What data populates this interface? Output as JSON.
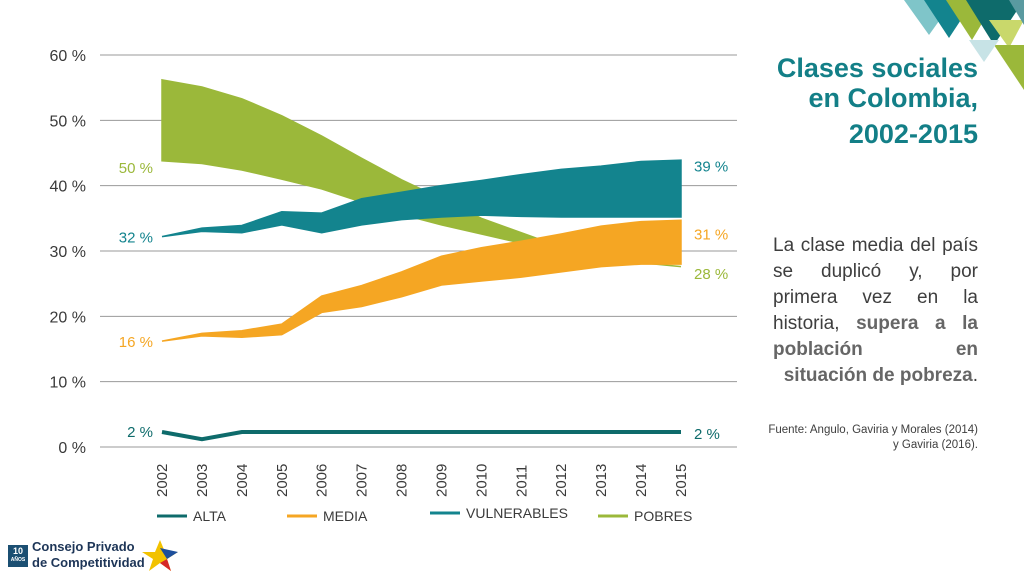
{
  "title": {
    "line1": "Clases sociales",
    "line2": "en Colombia,",
    "line3": "2002-2015"
  },
  "body": {
    "plain": "La clase media del país se duplicó y, por primera vez en la historia, ",
    "highlight": "supera a la población en situación de pobreza",
    "end": "."
  },
  "source": "Fuente: Angulo, Gaviria y Morales (2014) y Gaviria (2016).",
  "org": {
    "badge_num": "10",
    "badge_sub": "AÑOS",
    "name_line1": "Consejo Privado",
    "name_line2": "de Competitividad"
  },
  "colors": {
    "alta": "#0e6b6b",
    "media": "#f5a623",
    "vulnerables": "#13848e",
    "pobres": "#9bb83a",
    "title": "#137f87"
  },
  "chart_data": {
    "type": "area",
    "x": [
      "2002",
      "2003",
      "2004",
      "2005",
      "2006",
      "2007",
      "2008",
      "2009",
      "2010",
      "2011",
      "2012",
      "2013",
      "2014",
      "2015"
    ],
    "ylim": [
      0,
      60
    ],
    "yticks": [
      "0 %",
      "10 %",
      "20 %",
      "30 %",
      "40 %",
      "50 %",
      "60 %"
    ],
    "grid": true,
    "legend_position": "bottom",
    "series": [
      {
        "name": "ALTA",
        "type": "line",
        "values": [
          2.3,
          1.2,
          2.3,
          2.3,
          2.3,
          2.3,
          2.3,
          2.3,
          2.3,
          2.3,
          2.3,
          2.3,
          2.3,
          2.3
        ],
        "start_label": "2 %",
        "end_label": "2 %"
      },
      {
        "name": "MEDIA",
        "type": "band",
        "lower": [
          16.2,
          17.0,
          16.8,
          17.2,
          20.6,
          21.5,
          23.0,
          24.8,
          25.4,
          26.0,
          26.8,
          27.6,
          28.0,
          28.0
        ],
        "upper": [
          16.2,
          17.4,
          17.8,
          18.8,
          23.1,
          24.7,
          26.8,
          29.2,
          30.5,
          31.5,
          32.6,
          33.8,
          34.5,
          34.7
        ],
        "start_label": "16 %",
        "end_label": "31 %"
      },
      {
        "name": "VULNERABLES",
        "type": "band",
        "lower": [
          32.2,
          33.0,
          32.8,
          34.0,
          32.8,
          34.0,
          34.8,
          35.2,
          35.5,
          35.3,
          35.2,
          35.2,
          35.2,
          35.2
        ],
        "upper": [
          32.2,
          33.5,
          33.9,
          36.0,
          35.8,
          38.0,
          39.0,
          40.0,
          40.8,
          41.7,
          42.5,
          43.0,
          43.7,
          43.9
        ],
        "start_label": "32 %",
        "end_label": "39 %"
      },
      {
        "name": "POBRES",
        "type": "band",
        "lower": [
          43.8,
          43.4,
          42.4,
          41.0,
          39.5,
          37.5,
          35.6,
          34.0,
          32.6,
          31.2,
          30.0,
          29.0,
          28.2,
          27.6
        ],
        "upper": [
          56.2,
          55.1,
          53.3,
          50.7,
          47.6,
          44.2,
          40.9,
          38.0,
          35.0,
          32.8,
          30.6,
          29.1,
          28.2,
          27.6
        ],
        "start_label": "50 %",
        "end_label": "28 %"
      }
    ]
  }
}
